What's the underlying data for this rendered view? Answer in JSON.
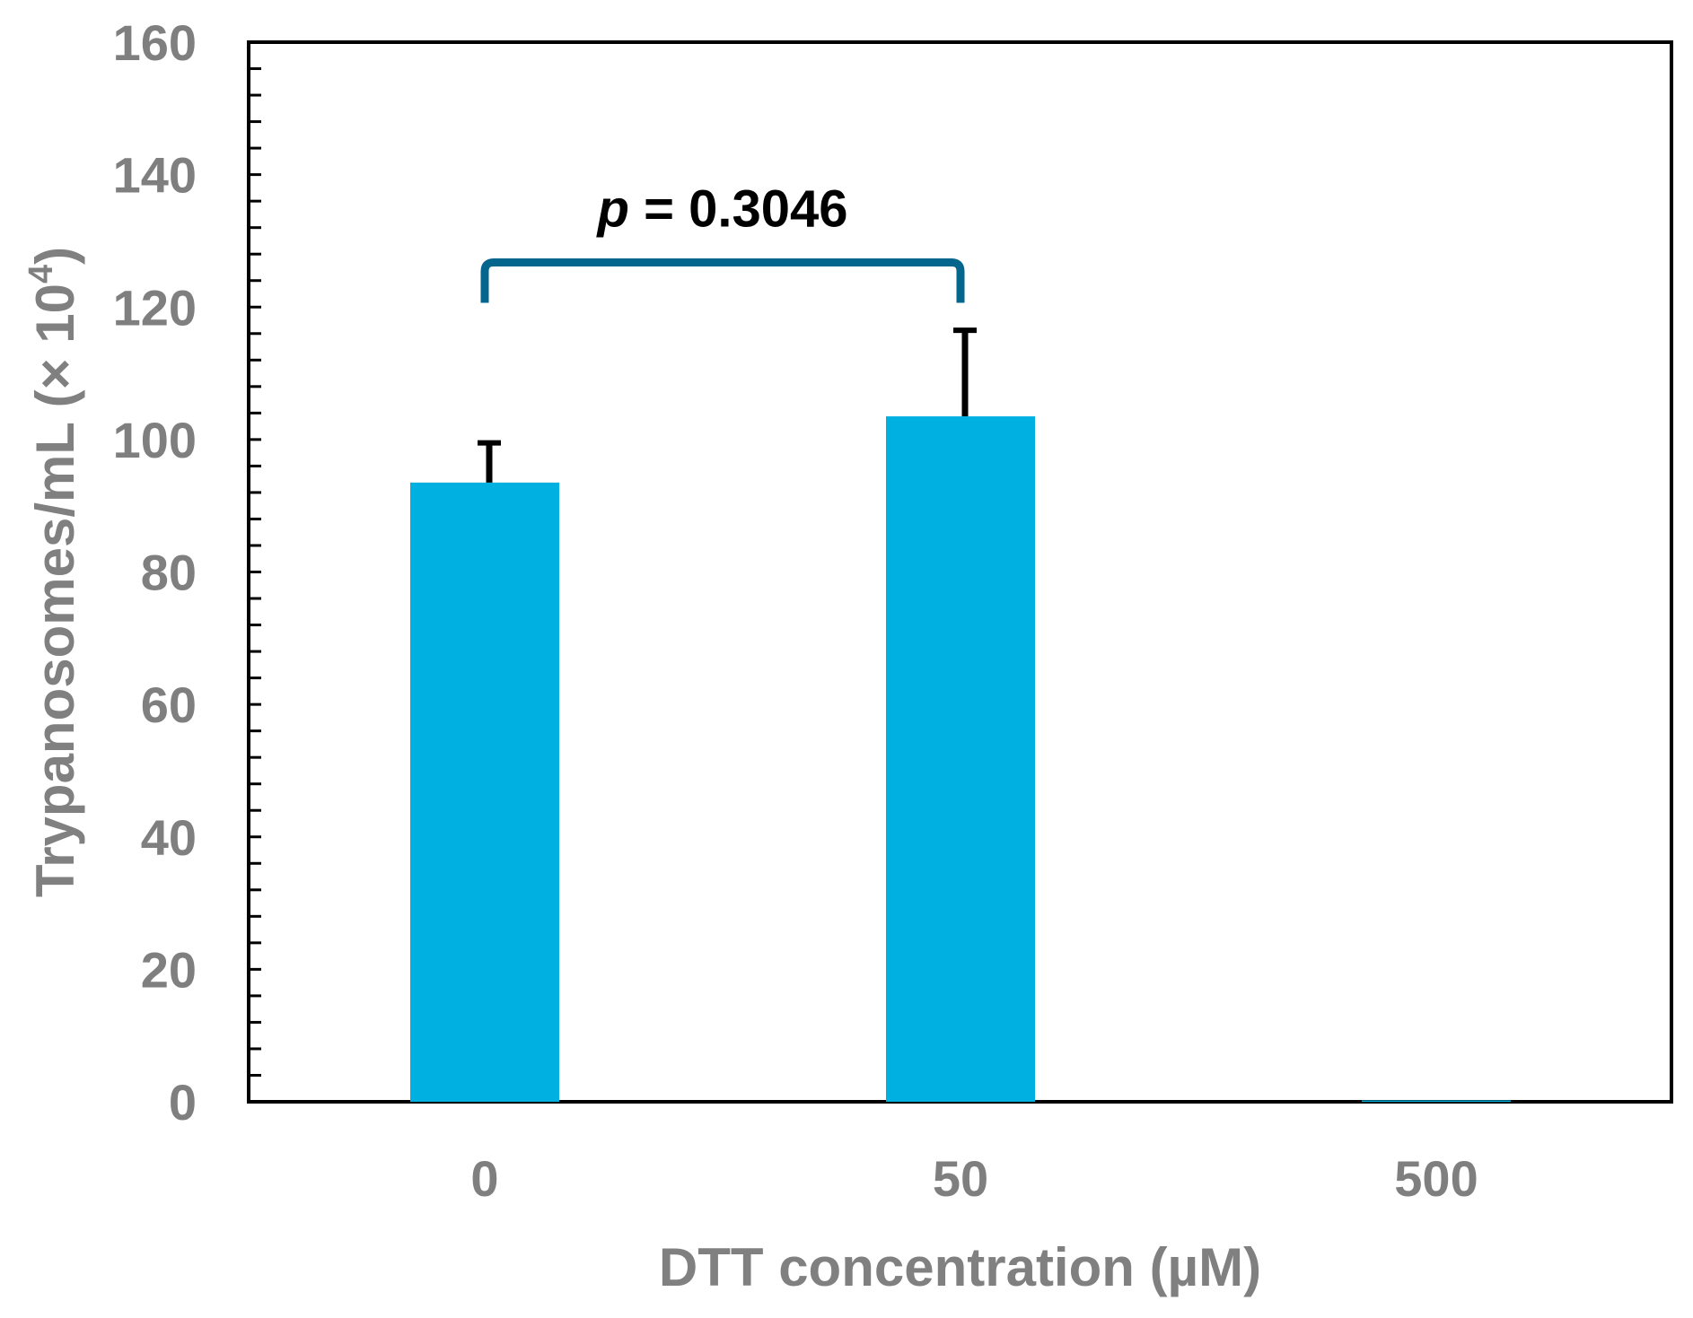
{
  "chart_data": {
    "type": "bar",
    "categories": [
      "0",
      "50",
      "500"
    ],
    "series": [
      {
        "name": "Trypanosomes/mL",
        "values": [
          93.5,
          103.5,
          0.2
        ],
        "error_upper": [
          6.0,
          13.0,
          0.0
        ]
      }
    ],
    "xlabel": "DTT concentration (µM)",
    "ylabel": {
      "main": "Trypanosomes/mL (× 10",
      "superscript": "4",
      "end": ")"
    },
    "ylim": [
      0,
      160
    ],
    "yticks": [
      "0",
      "20",
      "40",
      "60",
      "80",
      "100",
      "120",
      "140",
      "160"
    ],
    "y_minor_step": 4,
    "grid": false,
    "legend": "none",
    "annotation": {
      "p_symbol": "p",
      "p_text": " = 0.3046",
      "bracket_from": "0",
      "bracket_to": "50",
      "bracket_value": 122
    }
  },
  "colors": {
    "bar": "#00B0E0",
    "error_bar": "#000000",
    "axis": "#000000",
    "tick_label": "#7F7F7F",
    "axis_title": "#808080",
    "bracket": "#05668D",
    "annotation_text": "#000000"
  }
}
